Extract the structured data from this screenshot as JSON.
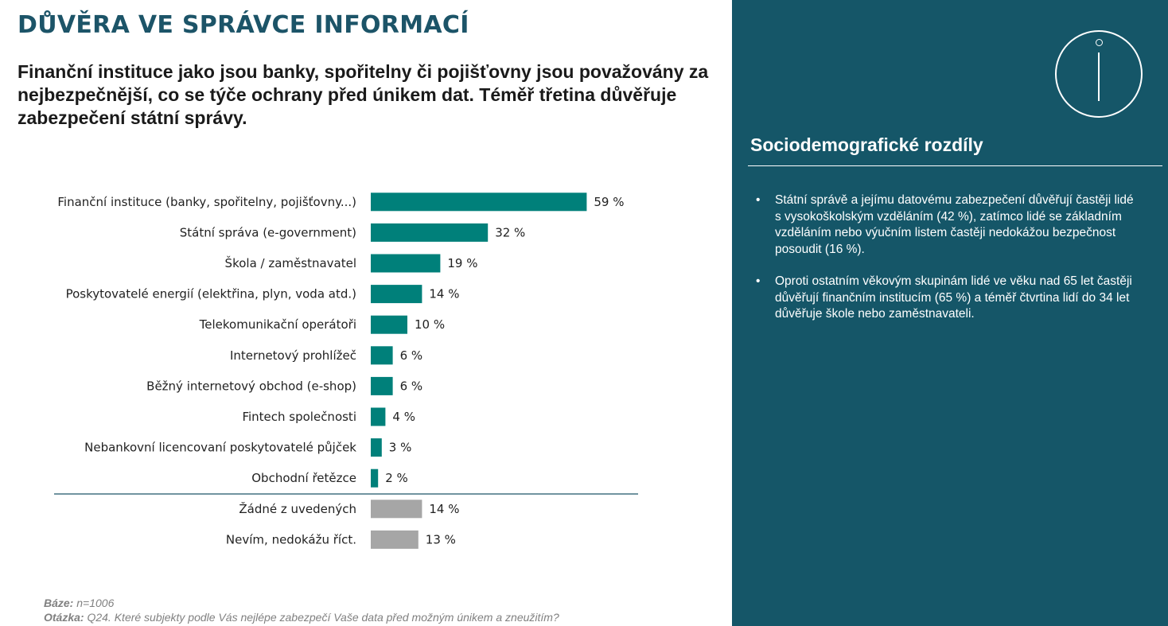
{
  "header": {
    "title": "DŮVĚRA VE SPRÁVCE INFORMACÍ",
    "subtitle": "Finanční instituce jako jsou banky, spořitelny či pojišťovny jsou považovány za nejbezpečnější, co se týče ochrany před únikem dat. Téměř třetina důvěřuje zabezpečení státní správy."
  },
  "chart_data": {
    "type": "bar",
    "orientation": "horizontal",
    "categories": [
      "Finanční instituce (banky, spořitelny, pojišťovny...)",
      "Státní správa (e-government)",
      "Škola / zaměstnavatel",
      "Poskytovatelé energií (elektřina, plyn, voda atd.)",
      "Telekomunikační operátoři",
      "Internetový prohlížeč",
      "Běžný internetový obchod (e-shop)",
      "Fintech společnosti",
      "Nebankovní licencovaní poskytovatelé půjček",
      "Obchodní řetězce",
      "Žádné z uvedených",
      "Nevím, nedokážu říct."
    ],
    "values": [
      59,
      32,
      19,
      14,
      10,
      6,
      6,
      4,
      3,
      2,
      14,
      13
    ],
    "labels": [
      "59 %",
      "32 %",
      "19 %",
      "14 %",
      "10 %",
      "6 %",
      "6 %",
      "4 %",
      "3 %",
      "2 %",
      "14 %",
      "13 %"
    ],
    "colors": {
      "main": "#00807a",
      "other": "#a6a6a6",
      "divider": "#1c5468"
    },
    "highlight_count": 10,
    "xlim": [
      0,
      100
    ]
  },
  "footer": {
    "base_label": "Báze:",
    "base_value": "n=1006",
    "question_label": "Otázka:",
    "question_value": "Q24. Které subjekty podle Vás nejlépe zabezpečí Vaše data před možným únikem a zneužitím?"
  },
  "panel": {
    "icon": "info-icon",
    "heading": "Sociodemografické rozdíly",
    "bullet_glyph": "•",
    "bullets": [
      "Státní správě a jejímu datovému zabezpečení důvěřují častěji lidé s vysokoškolským vzděláním (42 %), zatímco lidé se základním vzděláním nebo výučním listem častěji nedokážou bezpečnost posoudit (16 %).",
      "Oproti ostatním věkovým skupinám lidé ve věku nad 65 let častěji důvěřují finančním institucím (65 %) a téměř čtvrtina lidí do 34 let důvěřuje škole nebo zaměstnavateli."
    ],
    "colors": {
      "background": "#155668",
      "text": "#ffffff"
    }
  }
}
